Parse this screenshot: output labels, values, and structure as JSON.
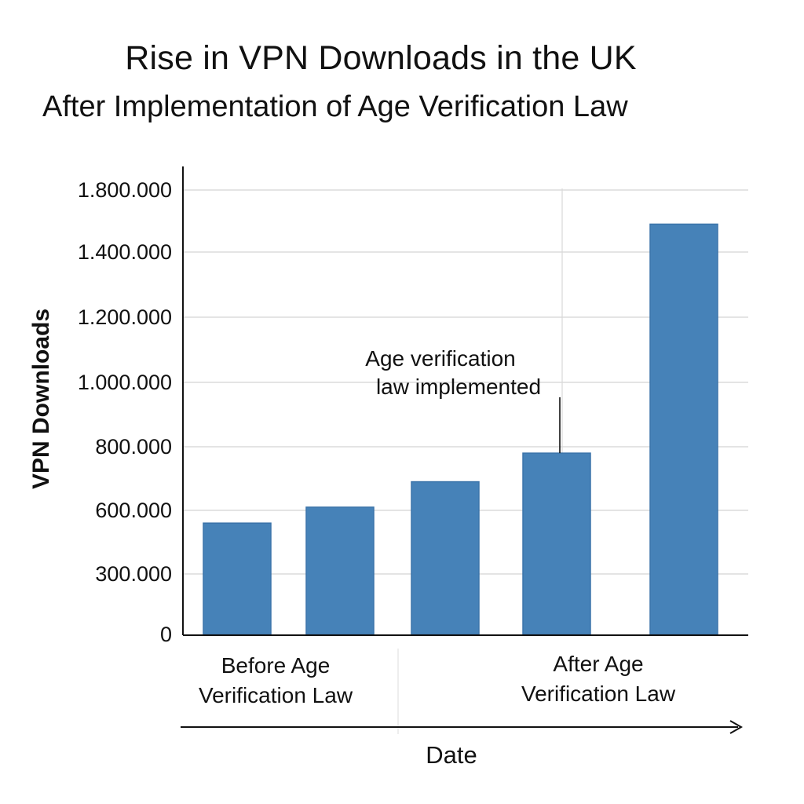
{
  "chart_data": {
    "type": "bar",
    "title": "Rise in VPN Downloads in the UK",
    "subtitle": "After Implementation of Age Verification Law",
    "ylabel": "VPN Downloads",
    "xlabel": "Date",
    "y_tick_labels": [
      "0",
      "300.000",
      "600.000",
      "800.000",
      "1.000.000",
      "1.200.000",
      "1.400.000",
      "1.800.000"
    ],
    "ylim": [
      0,
      1800000
    ],
    "grid": true,
    "bar_color": "#4682b8",
    "series": [
      {
        "values": [
          540000,
          610000,
          690000,
          780000,
          1580000
        ]
      }
    ],
    "groups": [
      {
        "label_lines": [
          "Before Age",
          "Verification Law"
        ]
      },
      {
        "label_lines": [
          "After Age",
          "Verification Law"
        ]
      }
    ],
    "annotations": [
      {
        "lines": [
          "Age verification",
          "law implemented"
        ],
        "bar_index": 3
      }
    ]
  }
}
